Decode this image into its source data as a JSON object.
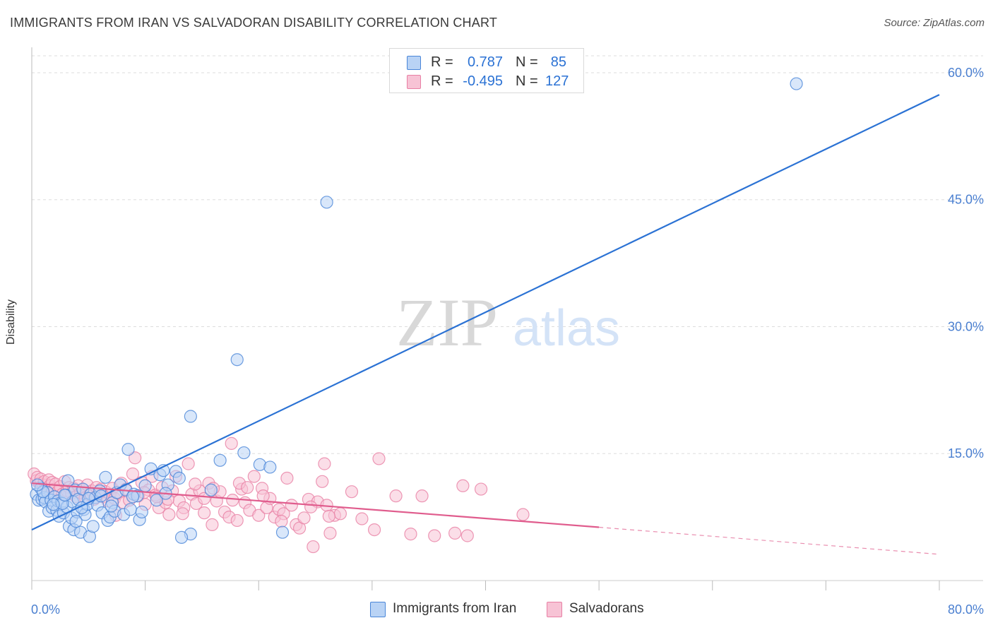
{
  "title": "IMMIGRANTS FROM IRAN VS SALVADORAN DISABILITY CORRELATION CHART",
  "source": "Source: ZipAtlas.com",
  "watermark": {
    "zip": "ZIP",
    "atlas": "atlas"
  },
  "colors": {
    "blue": "#4a86d8",
    "blue_fill": "#b9d3f5",
    "blue_line": "#2b72d4",
    "pink": "#e87fa4",
    "pink_fill": "#f7c3d5",
    "pink_line": "#e05c8d",
    "axis_label_blue": "#4a7fd0",
    "grid": "#dddddd"
  },
  "legend": {
    "rows": [
      {
        "r_label": "R =",
        "r_value": "0.787",
        "n_label": "N =",
        "n_value": "85",
        "color": "blue"
      },
      {
        "r_label": "R =",
        "r_value": "-0.495",
        "n_label": "N =",
        "n_value": "127",
        "color": "pink"
      }
    ]
  },
  "bottom_legend": [
    {
      "label": "Immigrants from Iran",
      "color": "blue"
    },
    {
      "label": "Salvadorans",
      "color": "pink"
    }
  ],
  "chart_data": {
    "type": "scatter",
    "title": "IMMIGRANTS FROM IRAN VS SALVADORAN DISABILITY CORRELATION CHART",
    "xlabel": "",
    "ylabel": "Disability",
    "xlim": [
      0,
      80
    ],
    "ylim": [
      0,
      62
    ],
    "x_ticks": [
      0,
      80
    ],
    "x_tick_labels": [
      "0.0%",
      "80.0%"
    ],
    "y_ticks": [
      15,
      30,
      45,
      60
    ],
    "y_tick_labels": [
      "15.0%",
      "30.0%",
      "45.0%",
      "60.0%"
    ],
    "grid": "horizontal dashed",
    "legend_position": "top-center",
    "series": [
      {
        "name": "Immigrants from Iran",
        "color": "blue",
        "R": 0.787,
        "N": 85,
        "trend": {
          "x": [
            0,
            80
          ],
          "y": [
            6.0,
            57.4
          ]
        },
        "points": [
          [
            0.4,
            10.2
          ],
          [
            0.6,
            9.5
          ],
          [
            0.8,
            10.9
          ],
          [
            0.9,
            9.6
          ],
          [
            1.1,
            9.8
          ],
          [
            1.2,
            9.3
          ],
          [
            1.4,
            10.4
          ],
          [
            1.5,
            8.2
          ],
          [
            1.7,
            9.5
          ],
          [
            1.8,
            8.6
          ],
          [
            2.0,
            9.9
          ],
          [
            2.2,
            8.3
          ],
          [
            2.3,
            9.4
          ],
          [
            2.4,
            7.6
          ],
          [
            2.6,
            9.2
          ],
          [
            2.8,
            8.0
          ],
          [
            3.0,
            10.1
          ],
          [
            3.1,
            8.7
          ],
          [
            3.2,
            11.8
          ],
          [
            3.3,
            6.4
          ],
          [
            3.5,
            7.4
          ],
          [
            3.6,
            9.3
          ],
          [
            3.7,
            6.0
          ],
          [
            3.8,
            10.7
          ],
          [
            4.0,
            8.1
          ],
          [
            4.1,
            9.6
          ],
          [
            4.3,
            5.7
          ],
          [
            4.5,
            10.8
          ],
          [
            4.6,
            8.4
          ],
          [
            4.7,
            7.8
          ],
          [
            4.9,
            9.0
          ],
          [
            5.1,
            5.2
          ],
          [
            5.2,
            10.2
          ],
          [
            5.4,
            6.4
          ],
          [
            5.6,
            9.8
          ],
          [
            5.8,
            8.9
          ],
          [
            6.0,
            10.6
          ],
          [
            6.2,
            8.0
          ],
          [
            6.5,
            12.2
          ],
          [
            6.7,
            7.1
          ],
          [
            6.9,
            7.5
          ],
          [
            7.1,
            9.2
          ],
          [
            7.3,
            8.2
          ],
          [
            7.5,
            10.4
          ],
          [
            7.8,
            11.3
          ],
          [
            8.1,
            7.8
          ],
          [
            8.3,
            10.7
          ],
          [
            8.5,
            15.5
          ],
          [
            8.7,
            8.4
          ],
          [
            9.0,
            10.2
          ],
          [
            9.3,
            10.0
          ],
          [
            9.5,
            7.2
          ],
          [
            9.7,
            8.1
          ],
          [
            10.0,
            11.2
          ],
          [
            10.5,
            13.2
          ],
          [
            11.0,
            9.5
          ],
          [
            11.3,
            12.5
          ],
          [
            11.6,
            13.0
          ],
          [
            12.0,
            11.3
          ],
          [
            12.7,
            12.9
          ],
          [
            13.0,
            12.1
          ],
          [
            14.0,
            19.4
          ],
          [
            15.8,
            10.7
          ],
          [
            16.6,
            14.2
          ],
          [
            18.1,
            26.1
          ],
          [
            18.7,
            15.1
          ],
          [
            20.1,
            13.7
          ],
          [
            21.0,
            13.4
          ],
          [
            22.1,
            5.7
          ],
          [
            14.0,
            5.5
          ],
          [
            13.2,
            5.1
          ],
          [
            26.0,
            44.7
          ],
          [
            67.4,
            58.7
          ],
          [
            1.0,
            10.5
          ],
          [
            2.7,
            9.1
          ],
          [
            3.9,
            7.0
          ],
          [
            5.0,
            9.7
          ],
          [
            6.1,
            10.0
          ],
          [
            7.0,
            8.8
          ],
          [
            8.9,
            9.9
          ],
          [
            11.8,
            10.3
          ],
          [
            1.9,
            9.0
          ],
          [
            2.9,
            10.1
          ],
          [
            4.4,
            8.6
          ],
          [
            0.5,
            11.3
          ]
        ]
      },
      {
        "name": "Salvadorans",
        "color": "pink",
        "R": -0.495,
        "N": 127,
        "trend": {
          "x": [
            0,
            50
          ],
          "y": [
            11.5,
            6.3
          ]
        },
        "trend_dashed": {
          "x": [
            50,
            80
          ],
          "y": [
            6.3,
            3.1
          ]
        },
        "points": [
          [
            0.2,
            12.6
          ],
          [
            0.4,
            11.8
          ],
          [
            0.5,
            12.2
          ],
          [
            0.7,
            11.5
          ],
          [
            0.8,
            12.0
          ],
          [
            1.0,
            11.3
          ],
          [
            1.1,
            11.7
          ],
          [
            1.3,
            10.9
          ],
          [
            1.5,
            11.9
          ],
          [
            1.6,
            11.2
          ],
          [
            1.8,
            11.6
          ],
          [
            2.0,
            10.8
          ],
          [
            2.1,
            11.4
          ],
          [
            2.3,
            10.5
          ],
          [
            2.5,
            11.1
          ],
          [
            2.7,
            10.2
          ],
          [
            2.9,
            11.7
          ],
          [
            3.1,
            10.6
          ],
          [
            3.3,
            11.0
          ],
          [
            3.5,
            10.3
          ],
          [
            3.7,
            10.9
          ],
          [
            3.9,
            9.9
          ],
          [
            4.1,
            11.2
          ],
          [
            4.3,
            10.4
          ],
          [
            4.5,
            10.7
          ],
          [
            4.7,
            9.8
          ],
          [
            4.9,
            11.3
          ],
          [
            5.1,
            10.1
          ],
          [
            5.3,
            10.6
          ],
          [
            5.5,
            9.6
          ],
          [
            5.7,
            11.0
          ],
          [
            5.9,
            10.3
          ],
          [
            6.1,
            10.8
          ],
          [
            6.3,
            9.9
          ],
          [
            6.5,
            10.5
          ],
          [
            6.7,
            9.4
          ],
          [
            6.9,
            10.2
          ],
          [
            7.1,
            10.9
          ],
          [
            7.3,
            9.7
          ],
          [
            7.6,
            10.3
          ],
          [
            7.9,
            11.5
          ],
          [
            8.1,
            9.2
          ],
          [
            8.3,
            10.8
          ],
          [
            8.6,
            9.5
          ],
          [
            8.9,
            12.6
          ],
          [
            9.1,
            14.5
          ],
          [
            9.4,
            10.0
          ],
          [
            9.7,
            11.6
          ],
          [
            10.0,
            9.0
          ],
          [
            10.3,
            10.7
          ],
          [
            10.6,
            12.3
          ],
          [
            10.9,
            10.1
          ],
          [
            11.2,
            8.6
          ],
          [
            11.5,
            11.0
          ],
          [
            11.8,
            9.2
          ],
          [
            12.1,
            7.8
          ],
          [
            12.4,
            10.6
          ],
          [
            12.7,
            12.3
          ],
          [
            13.0,
            9.4
          ],
          [
            13.4,
            8.6
          ],
          [
            13.8,
            13.8
          ],
          [
            14.1,
            10.2
          ],
          [
            14.5,
            9.1
          ],
          [
            14.8,
            10.6
          ],
          [
            15.2,
            8.0
          ],
          [
            15.6,
            11.5
          ],
          [
            15.9,
            6.6
          ],
          [
            16.3,
            9.4
          ],
          [
            16.6,
            10.5
          ],
          [
            17.0,
            8.1
          ],
          [
            17.4,
            7.5
          ],
          [
            17.7,
            9.5
          ],
          [
            18.1,
            7.1
          ],
          [
            18.5,
            10.8
          ],
          [
            18.8,
            9.2
          ],
          [
            19.2,
            8.3
          ],
          [
            19.6,
            12.3
          ],
          [
            20.0,
            7.7
          ],
          [
            20.3,
            10.9
          ],
          [
            20.7,
            8.6
          ],
          [
            21.0,
            9.7
          ],
          [
            21.4,
            7.5
          ],
          [
            21.8,
            8.4
          ],
          [
            22.2,
            7.9
          ],
          [
            22.5,
            12.1
          ],
          [
            22.9,
            8.9
          ],
          [
            23.3,
            6.6
          ],
          [
            23.6,
            6.2
          ],
          [
            24.0,
            7.4
          ],
          [
            24.4,
            9.6
          ],
          [
            24.8,
            4.0
          ],
          [
            25.2,
            9.3
          ],
          [
            25.6,
            11.7
          ],
          [
            26.0,
            8.9
          ],
          [
            26.3,
            5.6
          ],
          [
            26.7,
            7.7
          ],
          [
            27.2,
            7.9
          ],
          [
            28.2,
            10.5
          ],
          [
            29.1,
            7.3
          ],
          [
            30.2,
            6.0
          ],
          [
            32.1,
            10.0
          ],
          [
            33.4,
            5.5
          ],
          [
            34.4,
            10.0
          ],
          [
            35.5,
            5.3
          ],
          [
            37.3,
            5.6
          ],
          [
            38.4,
            5.3
          ],
          [
            38.0,
            11.2
          ],
          [
            39.6,
            10.8
          ],
          [
            43.3,
            7.8
          ],
          [
            30.6,
            14.4
          ],
          [
            25.8,
            13.8
          ],
          [
            17.6,
            16.2
          ],
          [
            12.0,
            9.6
          ],
          [
            14.4,
            11.4
          ],
          [
            16.0,
            10.9
          ],
          [
            18.3,
            11.5
          ],
          [
            20.4,
            10.0
          ],
          [
            22.0,
            7.0
          ],
          [
            24.6,
            8.7
          ],
          [
            26.2,
            7.6
          ],
          [
            9.9,
            10.4
          ],
          [
            11.0,
            9.9
          ],
          [
            7.4,
            7.7
          ],
          [
            13.3,
            7.9
          ],
          [
            15.2,
            9.7
          ],
          [
            19.0,
            11.0
          ]
        ]
      }
    ]
  }
}
